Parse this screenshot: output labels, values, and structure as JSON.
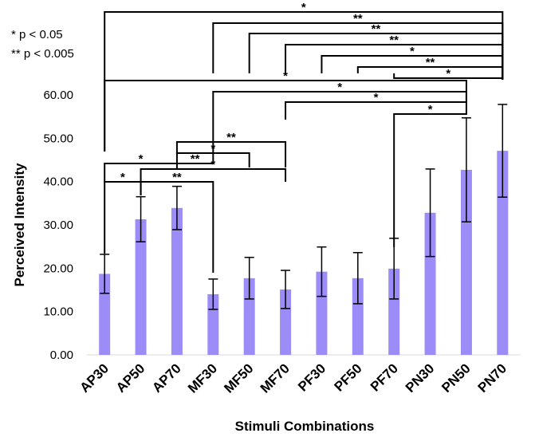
{
  "chart_data": {
    "type": "bar",
    "y_label": "Perceived Intensity",
    "x_label": "Stimuli Combinations",
    "categories": [
      "AP30",
      "AP50",
      "AP70",
      "MF30",
      "MF50",
      "MF70",
      "PF30",
      "PF50",
      "PF70",
      "PN30",
      "PN50",
      "PN70"
    ],
    "values": [
      18.7,
      31.3,
      33.9,
      14.0,
      17.7,
      15.1,
      19.2,
      17.7,
      19.9,
      32.8,
      42.7,
      47.1
    ],
    "errors": [
      4.5,
      5.2,
      5.0,
      3.5,
      4.8,
      4.4,
      5.7,
      5.9,
      7.0,
      10.1,
      12.0,
      10.7
    ],
    "color": "#9b8cf8",
    "ylim": [
      0,
      60
    ],
    "yticks": [
      {
        "value": 0,
        "label": "0.00"
      },
      {
        "value": 10,
        "label": "10.00"
      },
      {
        "value": 20,
        "label": "20.00"
      },
      {
        "value": 30,
        "label": "30.00"
      },
      {
        "value": 40,
        "label": "40.00"
      },
      {
        "value": 50,
        "label": "50.00"
      },
      {
        "value": 60,
        "label": "60.00"
      }
    ],
    "significance_notes": [
      "* p < 0.05",
      "** p < 0.005"
    ],
    "significance": [
      {
        "from": "AP30",
        "to": "PN70",
        "label": "*"
      },
      {
        "from": "MF30",
        "to": "PN70",
        "label": "**"
      },
      {
        "from": "MF50",
        "to": "PN70",
        "label": "**"
      },
      {
        "from": "MF70",
        "to": "PN70",
        "label": "**"
      },
      {
        "from": "PF30",
        "to": "PN70",
        "label": "*"
      },
      {
        "from": "PF50",
        "to": "PN70",
        "label": "**"
      },
      {
        "from": "PF70",
        "to": "PN70",
        "label": "*"
      },
      {
        "from": "AP30",
        "to": "PN50",
        "label": "*"
      },
      {
        "from": "MF30",
        "to": "PN50",
        "label": "*"
      },
      {
        "from": "MF70",
        "to": "PN50",
        "label": "*"
      },
      {
        "from": "PF70",
        "to": "PN50",
        "label": "*"
      },
      {
        "from": "AP70",
        "to": "MF70",
        "label": "**"
      },
      {
        "from": "AP70",
        "to": "MF50",
        "label": "*"
      },
      {
        "from": "AP70",
        "to": "MF30",
        "label": "**"
      },
      {
        "from": "AP30",
        "to": "AP70",
        "label": "*"
      },
      {
        "from": "AP50",
        "to": "MF70",
        "label": "*"
      },
      {
        "from": "AP30",
        "to": "AP50",
        "label": "*"
      },
      {
        "from": "AP50",
        "to": "MF30",
        "label": "**"
      }
    ]
  }
}
